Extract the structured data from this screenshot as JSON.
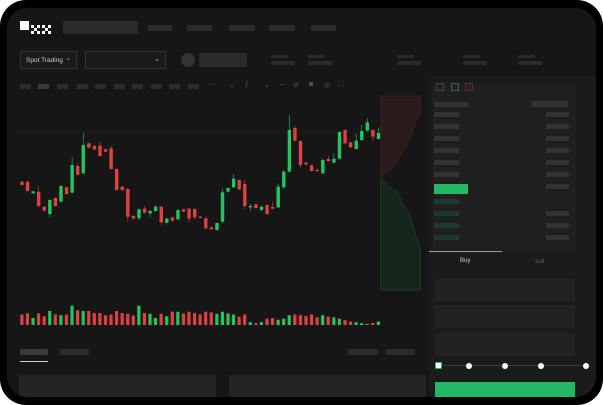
{
  "header": {
    "logo": "OKX"
  },
  "toolbar": {
    "market_button": "Spot Trading",
    "chevron": "⌄"
  },
  "trade_panel": {
    "buy_tab": "Buy",
    "sell_tab": "Sell",
    "leverage_fraction": 0
  },
  "colors": {
    "up": "#22c55e",
    "down": "#e0403f",
    "background": "#161616",
    "buy_button": "#22b864"
  },
  "chart": {
    "candles": [
      [
        185,
        187,
        173,
        175
      ],
      [
        185,
        187,
        155,
        157
      ],
      [
        150,
        157,
        149,
        156
      ],
      [
        155,
        170,
        110,
        112
      ],
      [
        110,
        112,
        96,
        98
      ],
      [
        88,
        132,
        78,
        130
      ],
      [
        136,
        138,
        110,
        112
      ],
      [
        125,
        175,
        122,
        172
      ],
      [
        168,
        170,
        146,
        148
      ],
      [
        152,
        258,
        150,
        235
      ],
      [
        232,
        240,
        204,
        206
      ],
      [
        210,
        332,
        208,
        295
      ],
      [
        300,
        303,
        285,
        287
      ],
      [
        292,
        295,
        278,
        282
      ],
      [
        293,
        305,
        260,
        262
      ],
      [
        282,
        284,
        273,
        275
      ],
      [
        285,
        292,
        220,
        223
      ],
      [
        223,
        225,
        158,
        160
      ],
      [
        170,
        172,
        158,
        160
      ],
      [
        163,
        165,
        65,
        80
      ],
      [
        82,
        85,
        72,
        74
      ],
      [
        75,
        105,
        70,
        102
      ],
      [
        104,
        112,
        88,
        92
      ],
      [
        90,
        100,
        78,
        97
      ],
      [
        97,
        114,
        95,
        110
      ],
      [
        110,
        112,
        55,
        63
      ],
      [
        62,
        76,
        58,
        74
      ],
      [
        78,
        80,
        64,
        68
      ],
      [
        72,
        102,
        70,
        100
      ],
      [
        102,
        104,
        93,
        95
      ],
      [
        104,
        106,
        64,
        74
      ],
      [
        103,
        105,
        72,
        78
      ],
      [
        80,
        82,
        75,
        77
      ],
      [
        75,
        80,
        43,
        45
      ],
      [
        48,
        50,
        40,
        42
      ],
      [
        40,
        63,
        38,
        61
      ],
      [
        65,
        165,
        60,
        153
      ],
      [
        155,
        168,
        153,
        166
      ],
      [
        168,
        208,
        166,
        194
      ],
      [
        190,
        192,
        160,
        162
      ],
      [
        178,
        190,
        103,
        112
      ],
      [
        108,
        118,
        96,
        112
      ],
      [
        117,
        119,
        104,
        106
      ],
      [
        100,
        112,
        98,
        110
      ],
      [
        115,
        117,
        86,
        88
      ],
      [
        109,
        124,
        102,
        104
      ],
      [
        108,
        180,
        106,
        170
      ],
      [
        168,
        222,
        165,
        215
      ],
      [
        215,
        385,
        213,
        340
      ],
      [
        346,
        352,
        305,
        308
      ],
      [
        307,
        309,
        225,
        235
      ],
      [
        242,
        244,
        234,
        236
      ],
      [
        234,
        236,
        215,
        217
      ],
      [
        220,
        225,
        216,
        218
      ],
      [
        210,
        255,
        208,
        250
      ],
      [
        253,
        262,
        245,
        247
      ],
      [
        242,
        270,
        240,
        254
      ],
      [
        254,
        336,
        252,
        334
      ],
      [
        340,
        342,
        298,
        300
      ],
      [
        303,
        305,
        286,
        288
      ],
      [
        283,
        328,
        281,
        308
      ],
      [
        310,
        355,
        308,
        337
      ],
      [
        338,
        375,
        336,
        363
      ],
      [
        340,
        342,
        308,
        320
      ],
      [
        313,
        348,
        311,
        331
      ]
    ],
    "volumes": [
      30,
      33,
      20,
      33,
      25,
      40,
      30,
      28,
      30,
      55,
      42,
      40,
      40,
      34,
      34,
      28,
      30,
      40,
      34,
      32,
      27,
      55,
      34,
      32,
      20,
      32,
      25,
      38,
      38,
      33,
      38,
      34,
      30,
      38,
      36,
      32,
      38,
      33,
      30,
      24,
      30,
      8,
      5,
      8,
      18,
      20,
      15,
      18,
      28,
      30,
      28,
      26,
      30,
      22,
      28,
      24,
      22,
      18,
      14,
      10,
      8,
      5,
      3,
      6,
      10
    ]
  }
}
